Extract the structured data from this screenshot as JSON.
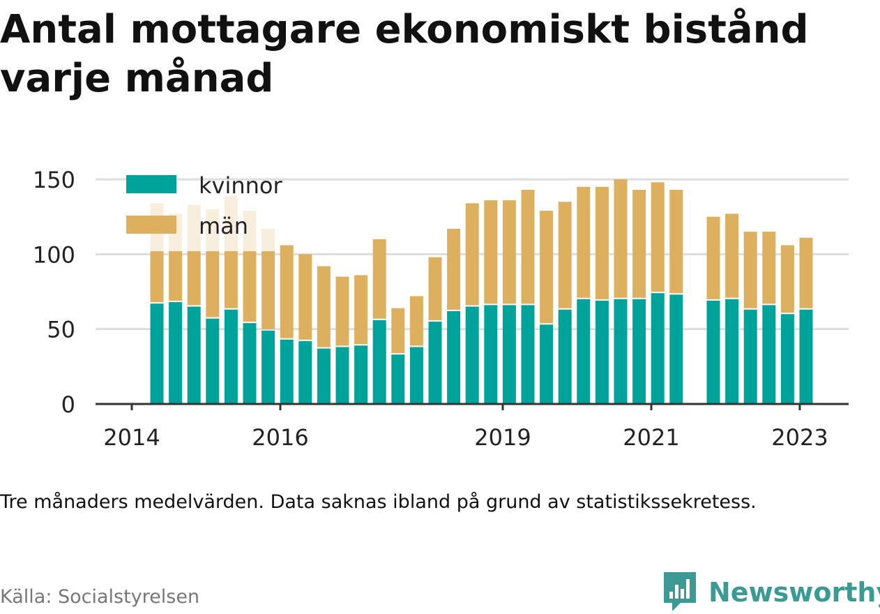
{
  "title": "Antal mottagare ekonomiskt bistånd varje månad",
  "note": "Tre månaders medelvärden. Data saknas ibland på grund av statistikssekretess.",
  "source": "Källa: Socialstyrelsen",
  "brand": "Newsworthy",
  "colors": {
    "kvinnor": "#00a39a",
    "man": "#dcb05e",
    "faded_kvinnor": "#e7e7e7",
    "faded_man": "#f8eedd",
    "grid": "#dddddd",
    "axis": "#333333",
    "brand": "#3c9a94"
  },
  "chart_data": {
    "type": "bar",
    "stacked": true,
    "legend": {
      "placement": "top-left",
      "labels": [
        "kvinnor",
        "män"
      ]
    },
    "ylim": [
      0,
      150
    ],
    "yticks": [
      0,
      50,
      100,
      150
    ],
    "xticks": [
      "2014",
      "2016",
      "2019",
      "2021",
      "2023"
    ],
    "xlabel": "",
    "ylabel": "",
    "grid": true,
    "note_faded": "Bars behind the legend (first seven periods) are drawn faded as in the original.",
    "series": [
      {
        "name": "kvinnor",
        "values": [
          67,
          68,
          65,
          57,
          63,
          54,
          49,
          43,
          42,
          37,
          38,
          39,
          56,
          33,
          38,
          55,
          62,
          65,
          66,
          66,
          66,
          53,
          63,
          70,
          69,
          70,
          70,
          74,
          73,
          null,
          69,
          70,
          63,
          66,
          60,
          63
        ]
      },
      {
        "name": "män",
        "values": [
          67,
          59,
          68,
          73,
          76,
          75,
          68,
          63,
          58,
          55,
          47,
          47,
          54,
          31,
          34,
          43,
          55,
          69,
          70,
          70,
          77,
          76,
          72,
          75,
          76,
          80,
          73,
          74,
          70,
          null,
          56,
          57,
          52,
          49,
          46,
          48
        ]
      }
    ]
  }
}
